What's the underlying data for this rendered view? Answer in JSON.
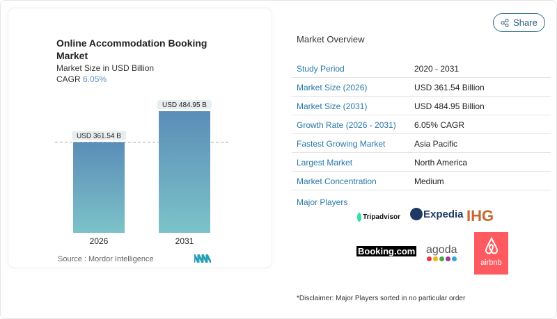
{
  "header": {
    "share_label": "Share",
    "share_icon": "share-icon"
  },
  "chart_data": {
    "type": "bar",
    "title": "Online Accommodation Booking Market",
    "subtitle": "Market Size in USD Billion",
    "cagr_label": "CAGR",
    "cagr_value": "6.05%",
    "categories": [
      "2026",
      "2031"
    ],
    "values": [
      361.54,
      484.95
    ],
    "data_labels": [
      "USD 361.54 B",
      "USD 484.95 B"
    ],
    "bar_color_top": "#5b8db8",
    "bar_color_bottom": "#7cc3c8",
    "source": "Source :  Mordor Intelligence"
  },
  "overview": {
    "title": "Market Overview",
    "rows": [
      {
        "label": "Study Period",
        "value": "2020 - 2031"
      },
      {
        "label": "Market Size (2026)",
        "value": "USD 361.54 Billion"
      },
      {
        "label": "Market Size (2031)",
        "value": "USD 484.95 Billion"
      },
      {
        "label": "Growth Rate (2026 - 2031)",
        "value": "6.05% CAGR"
      },
      {
        "label": "Fastest Growing Market",
        "value": "Asia Pacific"
      },
      {
        "label": "Largest Market",
        "value": "North America"
      },
      {
        "label": "Market Concentration",
        "value": "Medium"
      }
    ],
    "major_players_label": "Major Players",
    "players": [
      "Tripadvisor",
      "Expedia",
      "IHG",
      "Booking.com",
      "agoda",
      "airbnb"
    ],
    "disclaimer": "*Disclaimer: Major Players sorted in no particular order"
  }
}
